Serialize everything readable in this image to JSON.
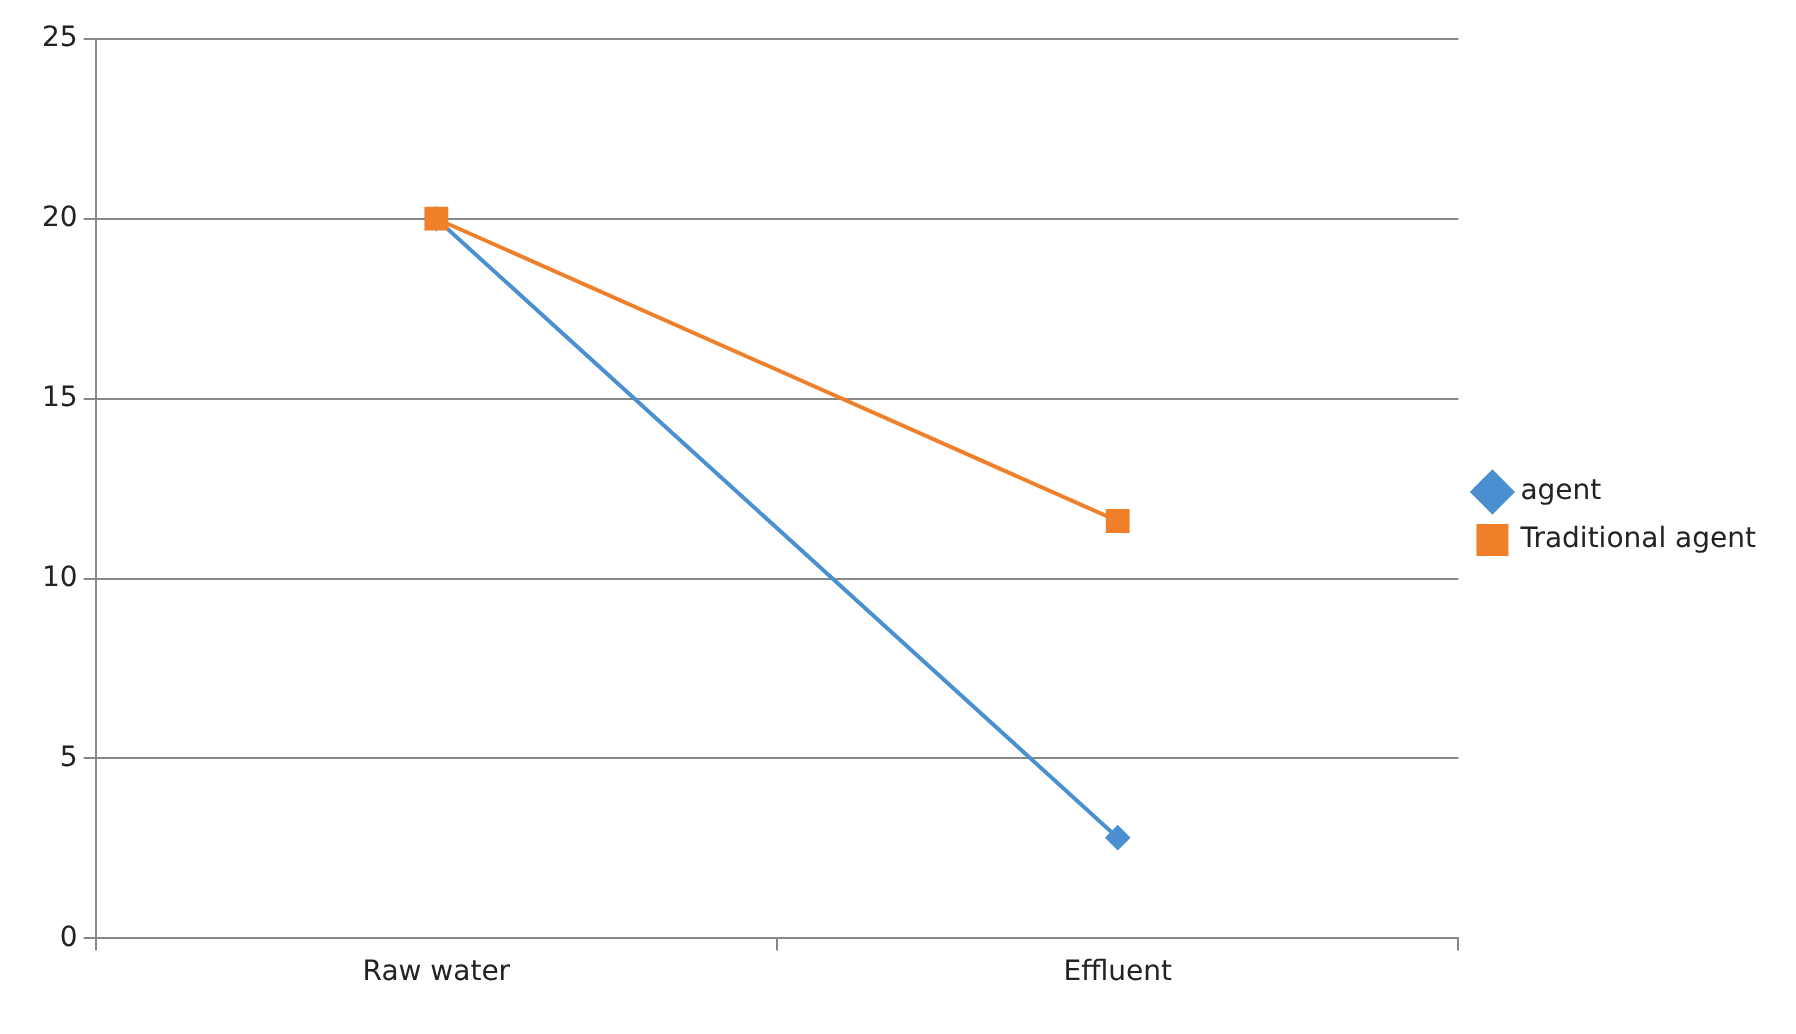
{
  "chart_data": {
    "type": "line",
    "categories": [
      "Raw water",
      "Effluent"
    ],
    "series": [
      {
        "name": "agent",
        "color": "#4a90d0",
        "values": [
          20,
          2.8
        ],
        "marker": "diamond"
      },
      {
        "name": "Traditional agent",
        "color": "#f07f2a",
        "values": [
          20,
          11.6
        ],
        "marker": "square"
      }
    ],
    "ylim": [
      0,
      25
    ],
    "yticks": [
      0,
      5,
      10,
      15,
      20,
      25
    ],
    "grid": "y",
    "legend": "right",
    "line_style": "solid"
  }
}
